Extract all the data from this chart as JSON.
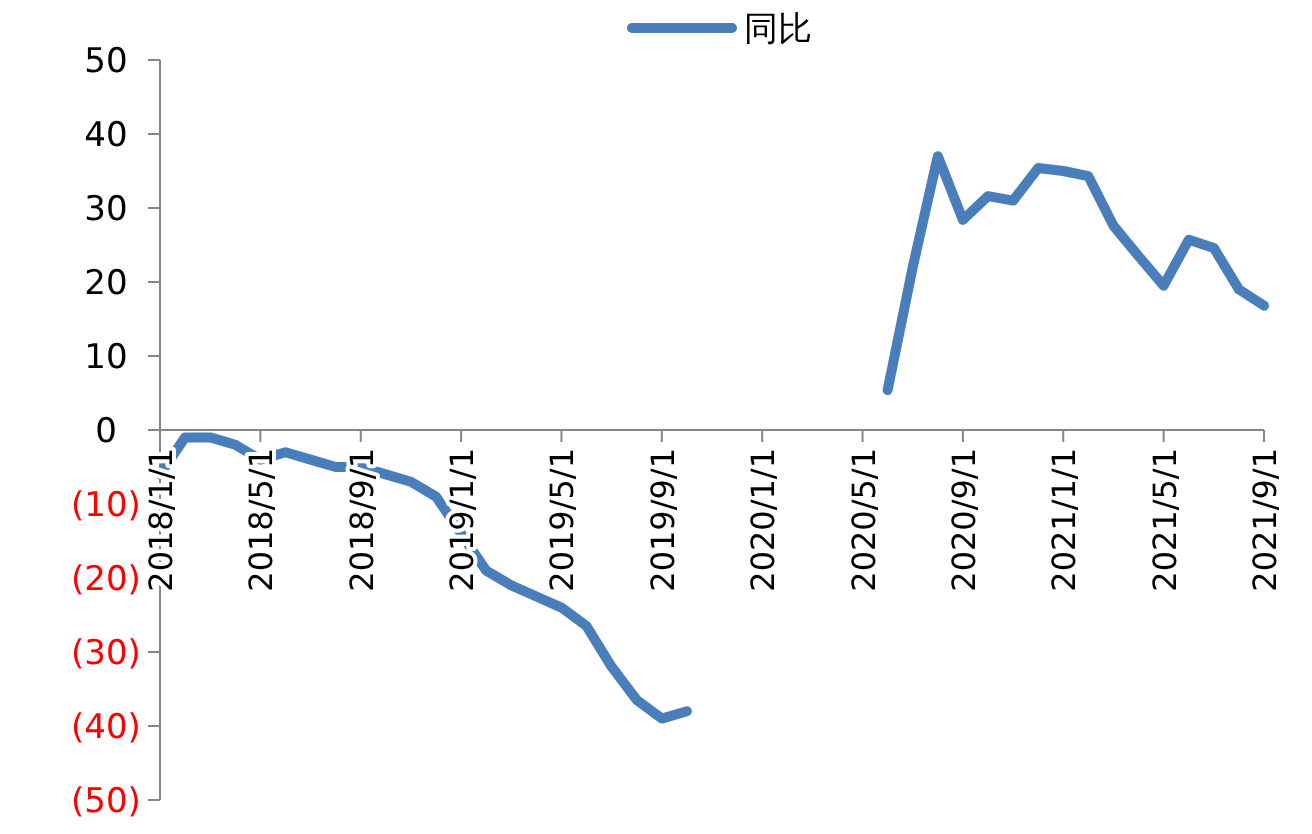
{
  "chart_data": {
    "type": "line",
    "legend": "top",
    "grid": false,
    "categories": [
      "2018/1/1",
      null,
      null,
      null,
      "2018/5/1",
      null,
      null,
      null,
      "2018/9/1",
      null,
      null,
      null,
      "2019/1/1",
      null,
      null,
      null,
      "2019/5/1",
      null,
      null,
      null,
      "2019/9/1",
      null,
      null,
      null,
      "2020/1/1",
      null,
      null,
      null,
      "2020/5/1",
      null,
      null,
      null,
      "2020/9/1",
      null,
      null,
      null,
      "2021/1/1",
      null,
      null,
      null,
      "2021/5/1",
      null,
      null,
      null,
      "2021/9/1"
    ],
    "series": [
      {
        "name": "同比",
        "color": "#4a7ebb",
        "values": [
          -6,
          -1,
          -1,
          -2,
          -4,
          -3,
          -4,
          -5,
          -5,
          -6,
          -7,
          -9,
          -14,
          -19,
          -21,
          -22.5,
          -24,
          -26.5,
          -32,
          -36.5,
          -39,
          -38,
          null,
          null,
          null,
          null,
          null,
          null,
          null,
          5.4,
          22,
          37,
          28.4,
          31.6,
          31,
          35.4,
          35,
          34.3,
          27.6,
          23.5,
          19.5,
          25.7,
          24.6,
          19,
          16.8
        ]
      }
    ],
    "ylim": [
      -50,
      50
    ],
    "yticks": [
      {
        "value": -50,
        "label": "(50)"
      },
      {
        "value": -40,
        "label": "(40)"
      },
      {
        "value": -30,
        "label": "(30)"
      },
      {
        "value": -20,
        "label": "(20)"
      },
      {
        "value": -10,
        "label": "(10)"
      },
      0,
      10,
      20,
      30,
      40,
      50
    ]
  }
}
